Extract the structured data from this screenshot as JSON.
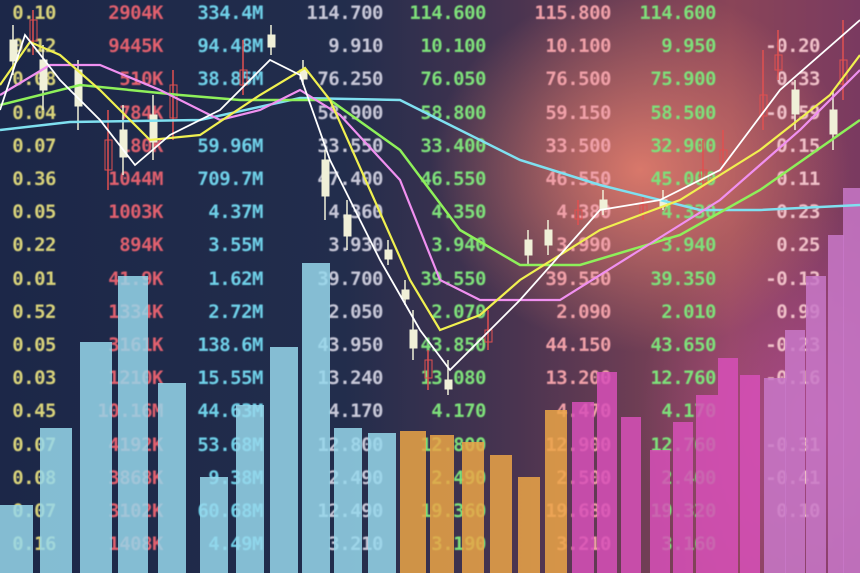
{
  "columns": [
    {
      "color": "#d8d27a",
      "cells": [
        "0.10",
        "0.12",
        "0.08",
        "0.04",
        "0.07",
        "0.36",
        "0.05",
        "0.22",
        "0.01",
        "0.52",
        "0.05",
        "0.03",
        "0.45",
        "0.07",
        "0.08",
        "0.07",
        "0.16"
      ]
    },
    {
      "color": "#e0606e",
      "cells": [
        "2904K",
        "9445K",
        "510K",
        "784K",
        "180K",
        "1044M",
        "1003K",
        "894K",
        "41.9K",
        "1334K",
        "3161K",
        "1210K",
        "10.16M",
        "4192K",
        "3868K",
        "3102K",
        "1408K"
      ]
    },
    {
      "color": "#6fd0e8",
      "cells": [
        "334.4M",
        "94.48M",
        "38.85M",
        "",
        "59.96M",
        "709.7M",
        "4.37M",
        "3.55M",
        "1.62M",
        "2.72M",
        "138.6M",
        "15.55M",
        "44.63M",
        "53.68M",
        "9.38M",
        "60.68M",
        "4.49M"
      ]
    },
    {
      "color": "#c8c8d8",
      "cells": [
        "114.700",
        "9.910",
        "76.250",
        "58.900",
        "33.550",
        "47.400",
        "4.360",
        "3.930",
        "39.700",
        "2.050",
        "43.950",
        "13.240",
        "4.170",
        "12.800",
        "2.490",
        "12.490",
        "3.210"
      ]
    },
    {
      "color": "#7ee07a",
      "cells": [
        "114.600",
        "10.100",
        "76.050",
        "58.800",
        "33.400",
        "46.550",
        "4.350",
        "3.940",
        "39.550",
        "2.070",
        "43.850",
        "13.080",
        "4.170",
        "12.800",
        "2.490",
        "19.360",
        "3.190"
      ]
    },
    {
      "color": "#f0a0a8",
      "cells": [
        "115.800",
        "10.100",
        "76.500",
        "59.150",
        "33.500",
        "46.550",
        "4.380",
        "3.990",
        "39.550",
        "2.090",
        "44.150",
        "13.200",
        "4.470",
        "12.900",
        "2.500",
        "19.680",
        "3.210"
      ]
    },
    {
      "color": "#7ee07a",
      "cells": [
        "114.600",
        "9.950",
        "75.900",
        "58.500",
        "32.900",
        "45.000",
        "4.330",
        "3.940",
        "39.350",
        "2.010",
        "43.650",
        "12.760",
        "4.170",
        "12.760",
        "2.400",
        "19.320",
        "3.160"
      ]
    },
    {
      "color": "#f0c0c8",
      "cells": [
        "",
        "-0.20",
        "0.33",
        "-0.59",
        "0.15",
        "0.11",
        "0.23",
        "0.25",
        "-0.13",
        "0.99",
        "-0.23",
        "-0.16",
        "",
        "-0.31",
        "-0.41",
        "0.10",
        ""
      ]
    }
  ],
  "colors": {
    "background_left": "#1c2748",
    "background_right": "#8a4558",
    "bars_left": "#8fd3e6",
    "bars_mid": "#e8a040",
    "bars_right": "#d050b0"
  }
}
